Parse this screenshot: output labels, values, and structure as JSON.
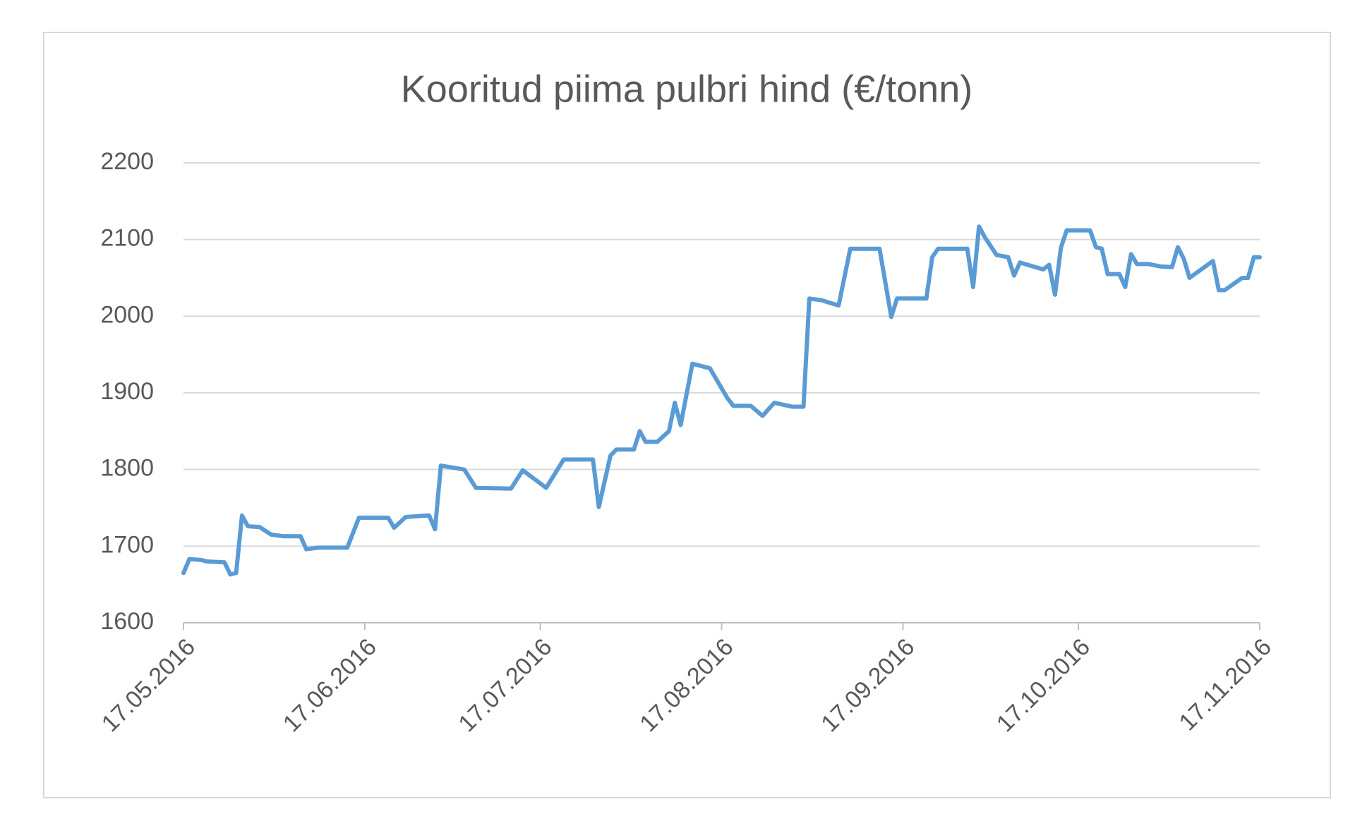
{
  "chart_data": {
    "type": "line",
    "title": "Kooritud piima pulbri hind (€/tonn)",
    "x": [
      "17.05.2016",
      "18.05.2016",
      "20.05.2016",
      "21.05.2016",
      "24.05.2016",
      "25.05.2016",
      "26.05.2016",
      "27.05.2016",
      "28.05.2016",
      "30.05.2016",
      "01.06.2016",
      "03.06.2016",
      "06.06.2016",
      "07.06.2016",
      "09.06.2016",
      "14.06.2016",
      "16.06.2016",
      "21.06.2016",
      "22.06.2016",
      "24.06.2016",
      "28.06.2016",
      "29.06.2016",
      "30.06.2016",
      "04.07.2016",
      "06.07.2016",
      "12.07.2016",
      "14.07.2016",
      "18.07.2016",
      "21.07.2016",
      "26.07.2016",
      "27.07.2016",
      "29.07.2016",
      "30.07.2016",
      "02.08.2016",
      "03.08.2016",
      "04.08.2016",
      "06.08.2016",
      "08.08.2016",
      "09.08.2016",
      "10.08.2016",
      "12.08.2016",
      "15.08.2016",
      "18.08.2016",
      "19.08.2016",
      "22.08.2016",
      "24.08.2016",
      "26.08.2016",
      "29.08.2016",
      "31.08.2016",
      "01.09.2016",
      "03.09.2016",
      "06.09.2016",
      "08.09.2016",
      "13.09.2016",
      "15.09.2016",
      "16.09.2016",
      "21.09.2016",
      "22.09.2016",
      "23.09.2016",
      "28.09.2016",
      "29.09.2016",
      "30.09.2016",
      "01.10.2016",
      "03.10.2016",
      "05.10.2016",
      "06.10.2016",
      "07.10.2016",
      "11.10.2016",
      "12.10.2016",
      "13.10.2016",
      "14.10.2016",
      "15.10.2016",
      "19.10.2016",
      "20.10.2016",
      "21.10.2016",
      "22.10.2016",
      "24.10.2016",
      "25.10.2016",
      "26.10.2016",
      "27.10.2016",
      "29.10.2016",
      "31.10.2016",
      "02.11.2016",
      "03.11.2016",
      "04.11.2016",
      "05.11.2016",
      "09.11.2016",
      "10.11.2016",
      "11.11.2016",
      "14.11.2016",
      "15.11.2016",
      "16.11.2016",
      "17.11.2016"
    ],
    "values": [
      1665,
      1683,
      1682,
      1680,
      1679,
      1663,
      1665,
      1740,
      1726,
      1725,
      1715,
      1713,
      1713,
      1696,
      1698,
      1698,
      1737,
      1737,
      1724,
      1738,
      1740,
      1722,
      1805,
      1800,
      1776,
      1775,
      1799,
      1776,
      1813,
      1813,
      1751,
      1818,
      1826,
      1826,
      1850,
      1836,
      1836,
      1850,
      1887,
      1858,
      1938,
      1932,
      1893,
      1883,
      1883,
      1870,
      1887,
      1882,
      1882,
      2023,
      2021,
      2014,
      2088,
      2088,
      1999,
      2023,
      2023,
      2077,
      2088,
      2088,
      2038,
      2117,
      2103,
      2080,
      2077,
      2053,
      2070,
      2061,
      2067,
      2028,
      2089,
      2112,
      2112,
      2090,
      2088,
      2055,
      2055,
      2038,
      2081,
      2068,
      2068,
      2065,
      2064,
      2090,
      2075,
      2050,
      2072,
      2034,
      2034,
      2050,
      2050,
      2077,
      2077
    ],
    "color": "#5b9bd5",
    "xlim": [
      "17.05.2016",
      "17.11.2016"
    ],
    "xticks": [
      "17.05.2016",
      "17.06.2016",
      "17.07.2016",
      "17.08.2016",
      "17.09.2016",
      "17.10.2016",
      "17.11.2016"
    ],
    "ylim": [
      1600,
      2200
    ],
    "yticks": [
      1600,
      1700,
      1800,
      1900,
      2000,
      2100,
      2200
    ],
    "grid": true
  }
}
